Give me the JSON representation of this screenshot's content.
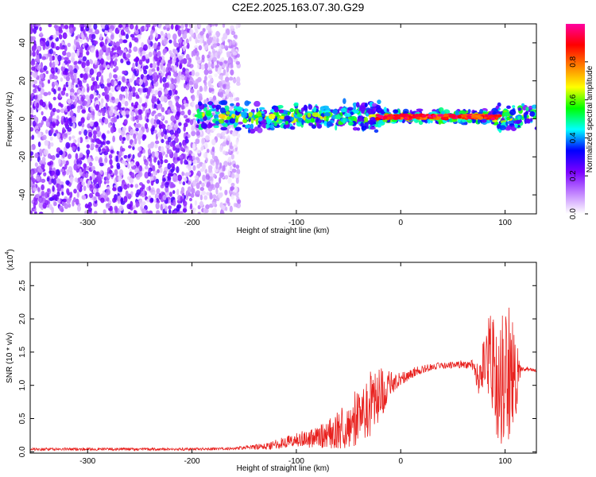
{
  "title": "C2E2.2025.163.07.30.G29",
  "chart_data": [
    {
      "type": "heatmap",
      "xlabel": "Height of straight line (km)",
      "ylabel": "Frequency (Hz)",
      "xlim": [
        -355,
        130
      ],
      "ylim": [
        -50,
        50
      ],
      "xticks": [
        -300,
        -200,
        -100,
        0,
        100
      ],
      "yticks": [
        -40,
        -20,
        0,
        20,
        40
      ],
      "colorbar": {
        "label": "Normalized spectral amplitude",
        "range": [
          0.0,
          1.0
        ],
        "ticks": [
          "0.0",
          "0.2",
          "0.4",
          "0.6",
          "0.8"
        ],
        "colors": [
          "#ffffff",
          "#c080ff",
          "#7a00ff",
          "#0000ff",
          "#00ffff",
          "#00ff00",
          "#ffff00",
          "#ff8000",
          "#ff0000",
          "#ff00a0"
        ]
      },
      "regions": [
        {
          "x_range": [
            -355,
            -155
          ],
          "y_range": [
            -50,
            50
          ],
          "amplitude": 0.15,
          "pattern": "scattered noise"
        },
        {
          "x_range": [
            -195,
            130
          ],
          "y_center": 1,
          "half_width": 6,
          "amplitude": 0.55,
          "pattern": "signal band"
        },
        {
          "x_range": [
            -25,
            95
          ],
          "y_center": 1,
          "half_width": 2,
          "amplitude": 0.95,
          "pattern": "strong line"
        }
      ]
    },
    {
      "type": "line",
      "xlabel": "Height of straight line (km)",
      "ylabel": "SNR (10 * v/v)",
      "y_multiplier": "(x10",
      "y_multiplier_exp": "4",
      "y_multiplier_close": ")",
      "xlim": [
        -355,
        130
      ],
      "ylim": [
        -0.02,
        2.85
      ],
      "xticks": [
        -300,
        -200,
        -100,
        0,
        100
      ],
      "yticks": [
        0.0,
        0.5,
        1.0,
        1.5,
        2.0,
        2.5
      ],
      "ytick_labels": [
        "0.0",
        "0.5",
        "1.0",
        "1.5",
        "2.0",
        "2.5"
      ],
      "series": [
        {
          "color": "#e8211e",
          "x": [
            -355,
            -300,
            -250,
            -200,
            -160,
            -130,
            -110,
            -100,
            -90,
            -80,
            -70,
            -60,
            -50,
            -40,
            -30,
            -20,
            -15,
            -10,
            -5,
            0,
            10,
            20,
            30,
            40,
            50,
            60,
            70,
            75,
            80,
            85,
            90,
            95,
            100,
            105,
            110,
            115,
            120,
            130
          ],
          "y": [
            0.04,
            0.04,
            0.04,
            0.04,
            0.05,
            0.08,
            0.15,
            0.18,
            0.2,
            0.22,
            0.26,
            0.33,
            0.42,
            0.55,
            0.7,
            0.85,
            0.95,
            1.02,
            1.05,
            1.1,
            1.18,
            1.24,
            1.28,
            1.3,
            1.31,
            1.32,
            1.3,
            1.0,
            1.25,
            1.5,
            1.2,
            0.9,
            1.3,
            1.2,
            1.05,
            1.25,
            1.25,
            1.22
          ],
          "noise_amplitude": [
            0.02,
            0.02,
            0.02,
            0.02,
            0.02,
            0.05,
            0.09,
            0.12,
            0.14,
            0.16,
            0.2,
            0.3,
            0.38,
            0.45,
            0.5,
            0.45,
            0.3,
            0.2,
            0.12,
            0.1,
            0.08,
            0.06,
            0.05,
            0.05,
            0.05,
            0.06,
            0.08,
            0.3,
            0.5,
            0.7,
            0.8,
            0.9,
            1.1,
            1.2,
            0.7,
            0.05,
            0.03,
            0.02
          ]
        }
      ]
    }
  ]
}
